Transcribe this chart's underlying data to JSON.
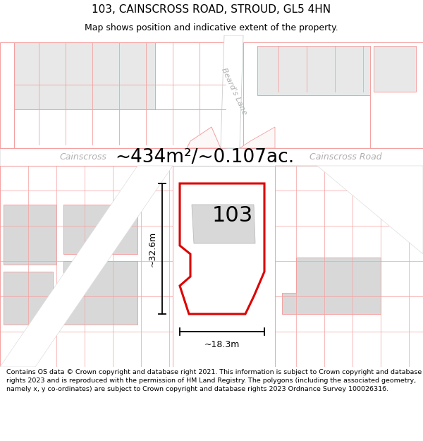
{
  "title": "103, CAINSCROSS ROAD, STROUD, GL5 4HN",
  "subtitle": "Map shows position and indicative extent of the property.",
  "footer": "Contains OS data © Crown copyright and database right 2021. This information is subject to Crown copyright and database rights 2023 and is reproduced with the permission of HM Land Registry. The polygons (including the associated geometry, namely x, y co-ordinates) are subject to Crown copyright and database rights 2023 Ordnance Survey 100026316.",
  "dim_label_width": "~18.3m",
  "dim_label_height": "~32.6m",
  "area_label": "~434m²/~0.107ac.",
  "plot_number": "103",
  "road_name_left": "Cainscross",
  "road_name_right": "Cainscross Road",
  "lane_name": "Beard's Lane",
  "plot_color": "#dd0000",
  "plot_fill": "#ffffff",
  "building_fill": "#d8d8d8",
  "map_line_color": "#f4a0a0",
  "map_bg_color": "#fdf8f8",
  "road_bg": "#ffffff",
  "text_gray": "#b0b0b0",
  "title_fontsize": 11,
  "subtitle_fontsize": 9,
  "area_fontsize": 19,
  "plot_num_fontsize": 22,
  "road_label_fontsize": 9,
  "lane_fontsize": 8,
  "dim_fontsize": 9,
  "footer_fontsize": 6.8
}
